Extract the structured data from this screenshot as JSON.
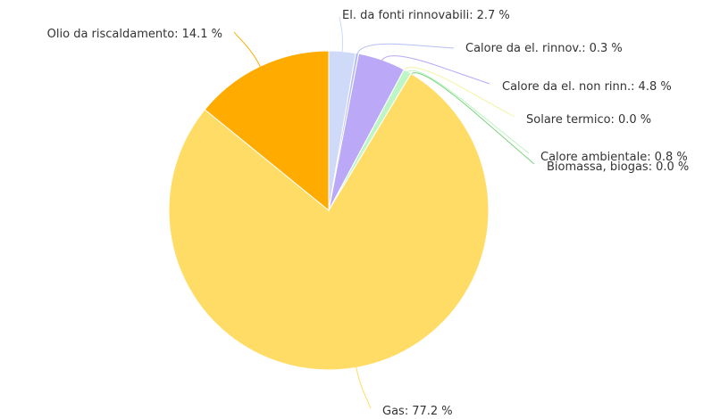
{
  "chart_data": {
    "type": "pie",
    "categories": [
      "El. da fonti rinnovabili:",
      "Calore da el. rinnov.:",
      "Calore da el. non rinn.:",
      "Solare termico:",
      "Calore ambientale:",
      "Biomassa, biogas:",
      "Gas:",
      "Olio da riscaldamento:"
    ],
    "values": [
      2.7,
      0.3,
      4.8,
      0.0,
      0.8,
      0.0,
      77.2,
      14.1
    ],
    "value_labels": [
      "2.7 %",
      "0.3 %",
      "4.8 %",
      "0.0 %",
      "0.8 %",
      "0.0 %",
      "77.2 %",
      "14.1 %"
    ],
    "colors": [
      "#cfdaf9",
      "#b3bff5",
      "#bba8f7",
      "#f3f3a2",
      "#bdf5c4",
      "#79d27a",
      "#ffdc66",
      "#ffab00"
    ]
  }
}
